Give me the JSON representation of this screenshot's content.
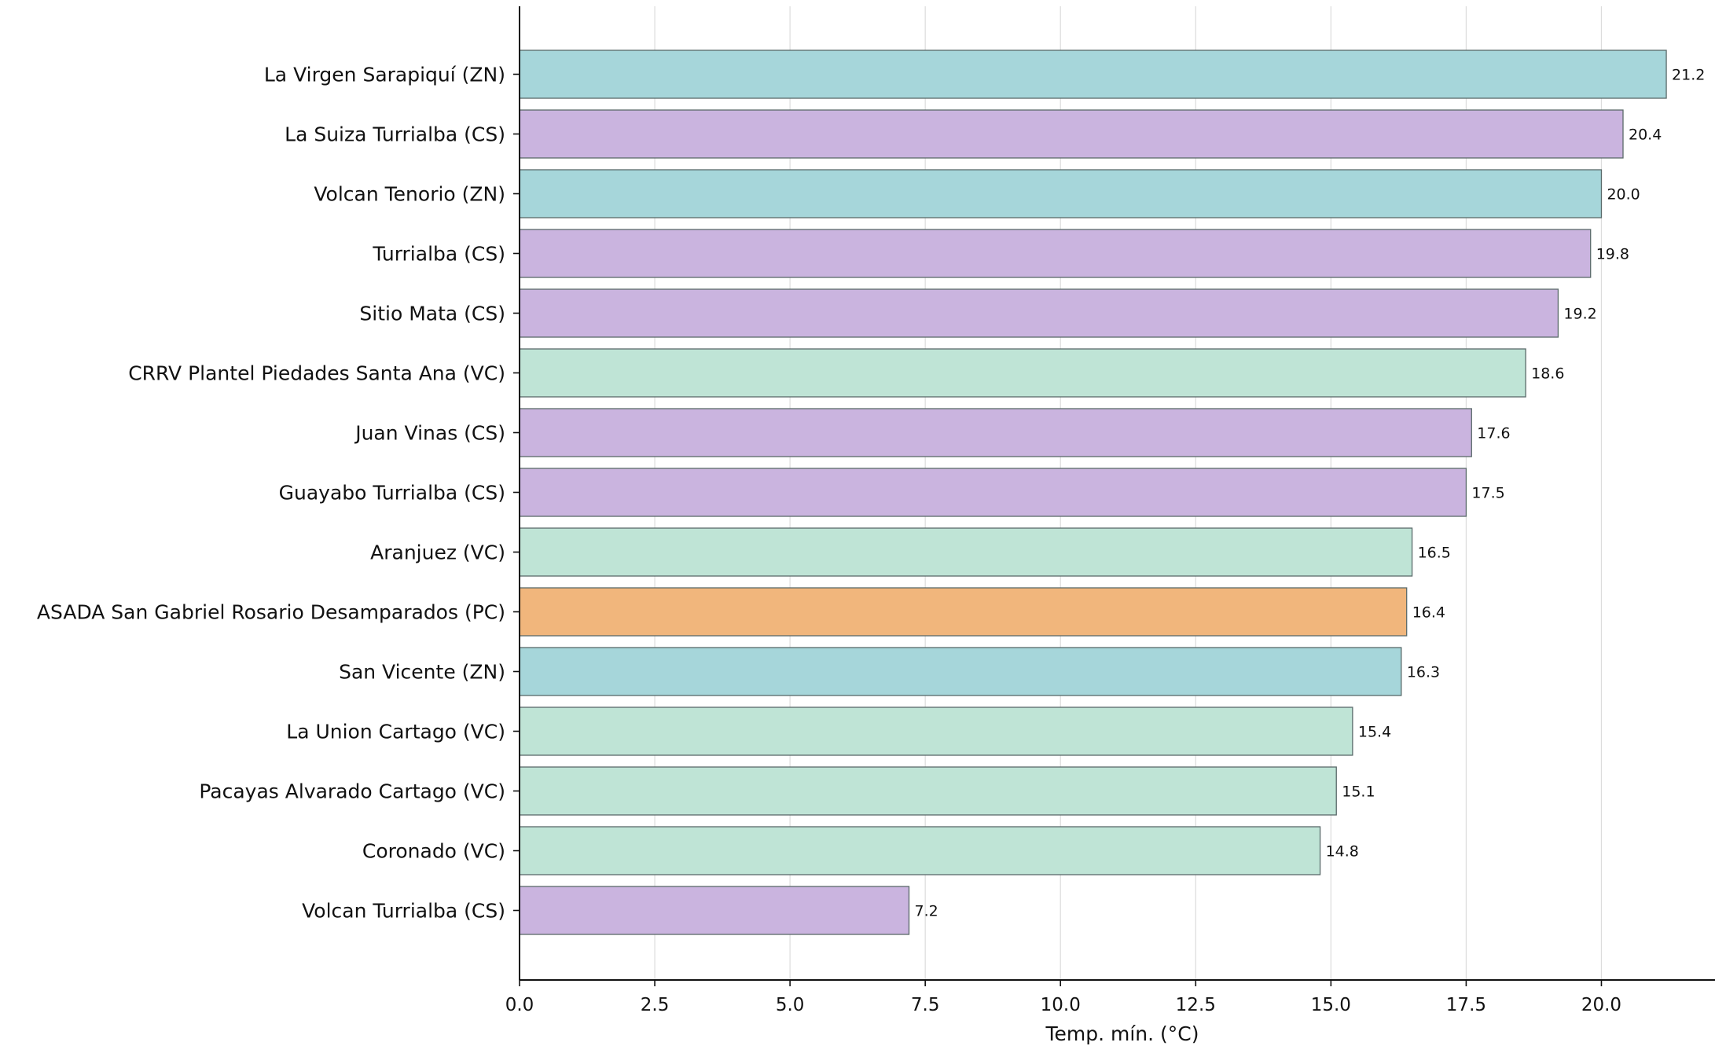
{
  "chart_data": {
    "type": "bar",
    "orientation": "horizontal",
    "xlabel": "Temp. mín. (°C)",
    "ylabel": "",
    "title": "",
    "xlim": [
      0,
      22.1
    ],
    "x_ticks": [
      "0.0",
      "2.5",
      "5.0",
      "7.5",
      "10.0",
      "12.5",
      "15.0",
      "17.5",
      "20.0"
    ],
    "x_tick_values": [
      0,
      2.5,
      5,
      7.5,
      10,
      12.5,
      15,
      17.5,
      20
    ],
    "grid": "vertical",
    "legend": "none",
    "categories": [
      "La Virgen Sarapiquí (ZN)",
      "La Suiza Turrialba (CS)",
      "Volcan Tenorio (ZN)",
      "Turrialba (CS)",
      "Sitio Mata (CS)",
      "CRRV Plantel Piedades Santa Ana (VC)",
      "Juan Vinas (CS)",
      "Guayabo Turrialba (CS)",
      "Aranjuez (VC)",
      "ASADA San Gabriel Rosario Desamparados (PC)",
      "San Vicente (ZN)",
      "La Union Cartago (VC)",
      "Pacayas Alvarado Cartago (VC)",
      "Coronado (VC)",
      "Volcan Turrialba (CS)"
    ],
    "values": [
      21.2,
      20.4,
      20.0,
      19.8,
      19.2,
      18.6,
      17.6,
      17.5,
      16.5,
      16.4,
      16.3,
      15.4,
      15.1,
      14.8,
      7.2
    ],
    "value_labels": [
      "21.2",
      "20.4",
      "20.0",
      "19.8",
      "19.2",
      "18.6",
      "17.6",
      "17.5",
      "16.5",
      "16.4",
      "16.3",
      "15.4",
      "15.1",
      "14.8",
      "7.2"
    ],
    "groups": [
      "ZN",
      "CS",
      "ZN",
      "CS",
      "CS",
      "VC",
      "CS",
      "CS",
      "VC",
      "PC",
      "ZN",
      "VC",
      "VC",
      "VC",
      "CS"
    ],
    "group_colors": {
      "ZN": "#a6d6da",
      "CS": "#cab4df",
      "VC": "#bfe4d6",
      "PC": "#f1b67c"
    },
    "bar_edge_color": "#5a6a6a"
  }
}
